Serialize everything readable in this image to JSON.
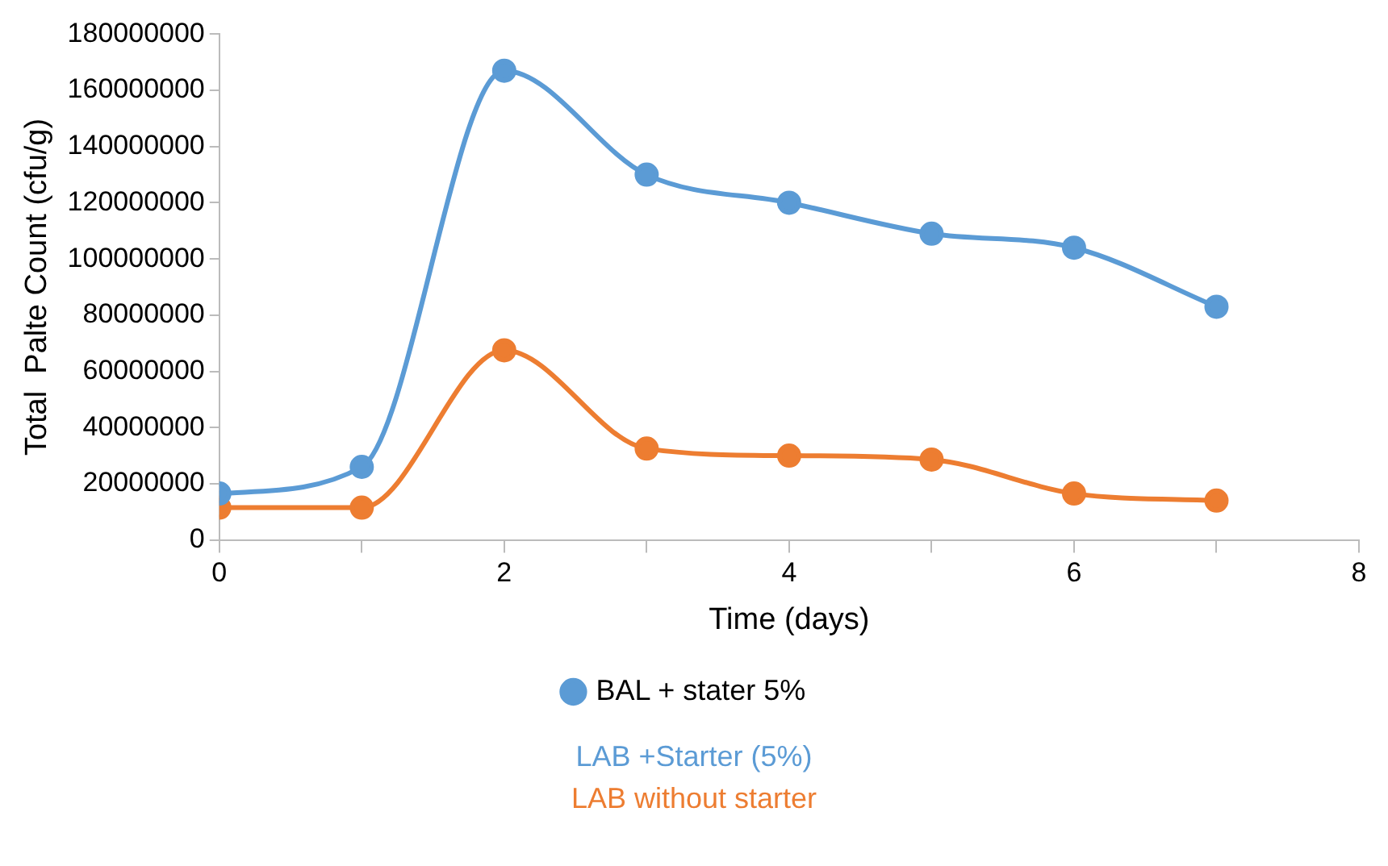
{
  "chart_data": {
    "type": "line",
    "xlabel": "Time (days)",
    "ylabel": "Total  Palte Count (cfu/g)",
    "x": [
      0,
      1,
      2,
      3,
      4,
      5,
      6,
      7
    ],
    "series": [
      {
        "name": "BAL + stater 5%",
        "color": "#5b9bd5",
        "values": [
          16500000,
          26000000,
          167000000,
          130000000,
          120000000,
          109000000,
          104000000,
          83000000
        ]
      },
      {
        "color": "#ed7d31",
        "values": [
          11500000,
          11500000,
          67500000,
          32500000,
          30000000,
          28600000,
          16500000,
          14000000
        ]
      }
    ],
    "xlim": [
      0,
      8
    ],
    "xticks": [
      0,
      {
        "value": 1,
        "label": null
      },
      2,
      {
        "value": 3,
        "label": null
      },
      4,
      {
        "value": 5,
        "label": null
      },
      6,
      {
        "value": 7,
        "label": null
      },
      8
    ],
    "ylim": [
      0,
      180000000
    ],
    "yticks": [
      0,
      20000000,
      40000000,
      60000000,
      80000000,
      100000000,
      120000000,
      140000000,
      160000000,
      180000000
    ],
    "grid": false,
    "legend": "bottom",
    "marker": "circle",
    "line_style": "solid",
    "annotations": [
      "LAB +Starter (5%)",
      "LAB without starter"
    ]
  }
}
